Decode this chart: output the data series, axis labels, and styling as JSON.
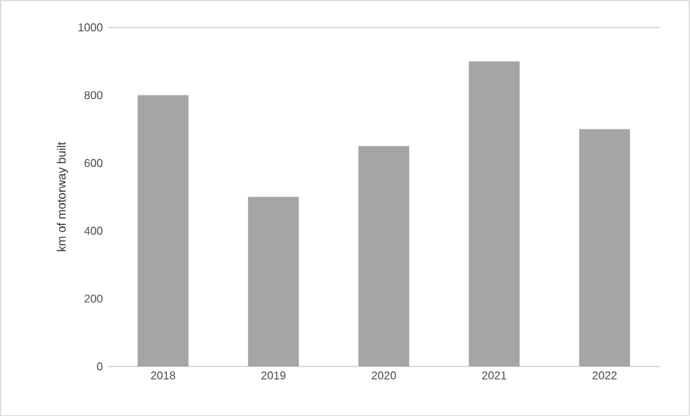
{
  "chart_data": {
    "type": "bar",
    "ylabel": "km of motorway built",
    "categories": [
      "2018",
      "2019",
      "2020",
      "2021",
      "2022"
    ],
    "values": [
      800,
      500,
      650,
      900,
      700
    ],
    "color": "#a5a5a5",
    "ylim": [
      0,
      1000
    ],
    "yticks": [
      0,
      200,
      400,
      600,
      800,
      1000
    ]
  }
}
